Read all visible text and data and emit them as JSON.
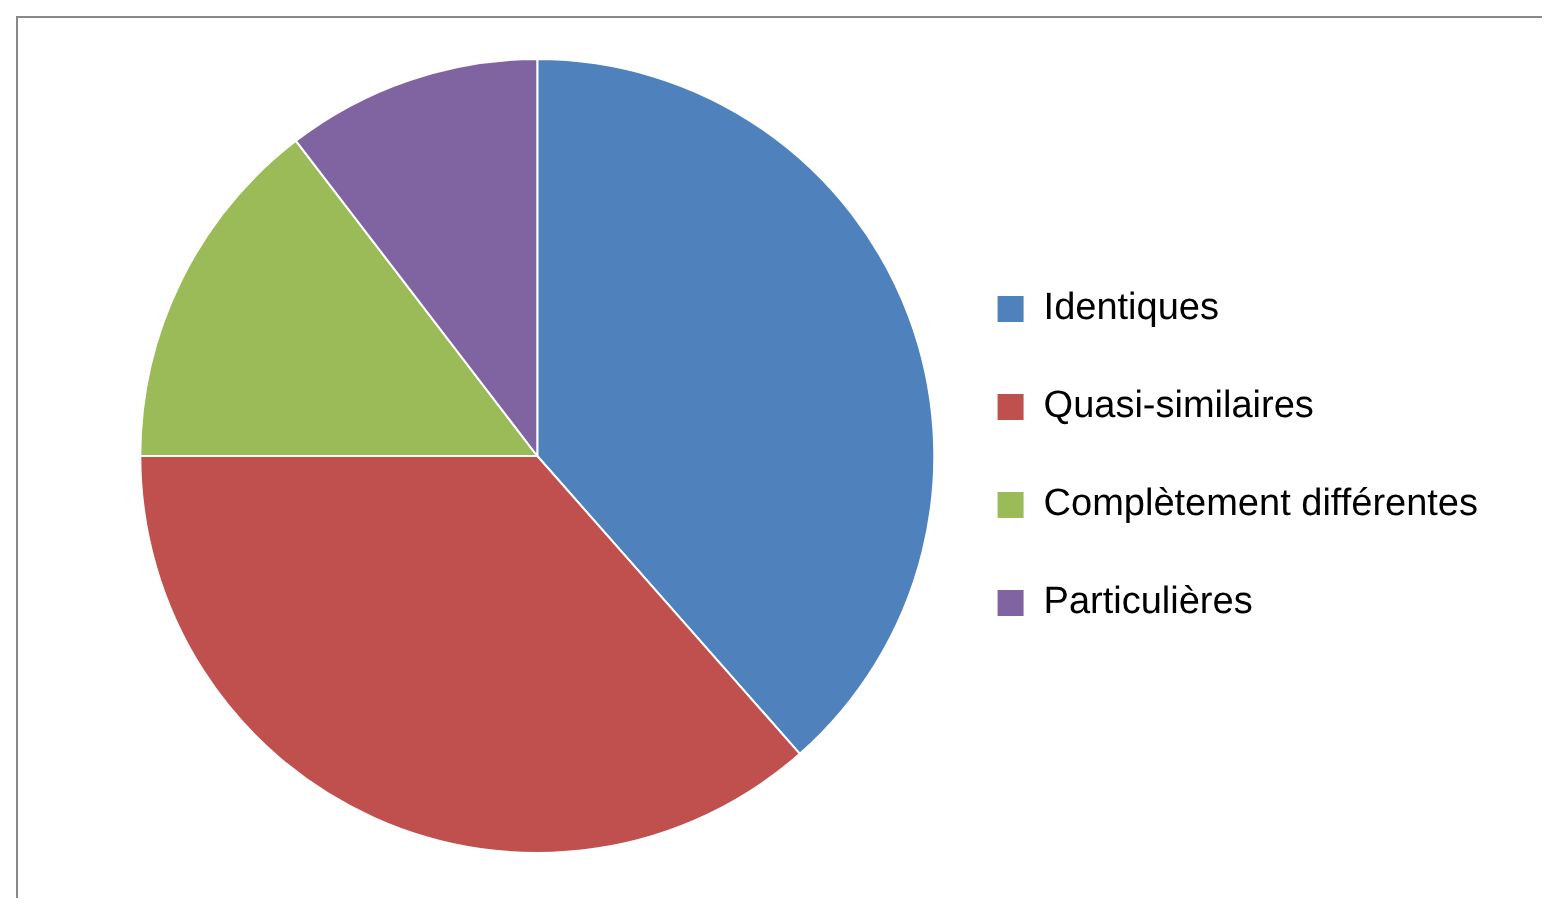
{
  "chart_data": {
    "type": "pie",
    "categories": [
      "Identiques",
      "Quasi-similaires",
      "Complètement différentes",
      "Particulières"
    ],
    "values": [
      38.5,
      36.5,
      14.6,
      10.4
    ],
    "colors": [
      "#4f81bd",
      "#c0504d",
      "#9bbb59",
      "#8064a2"
    ],
    "legend": "right"
  }
}
